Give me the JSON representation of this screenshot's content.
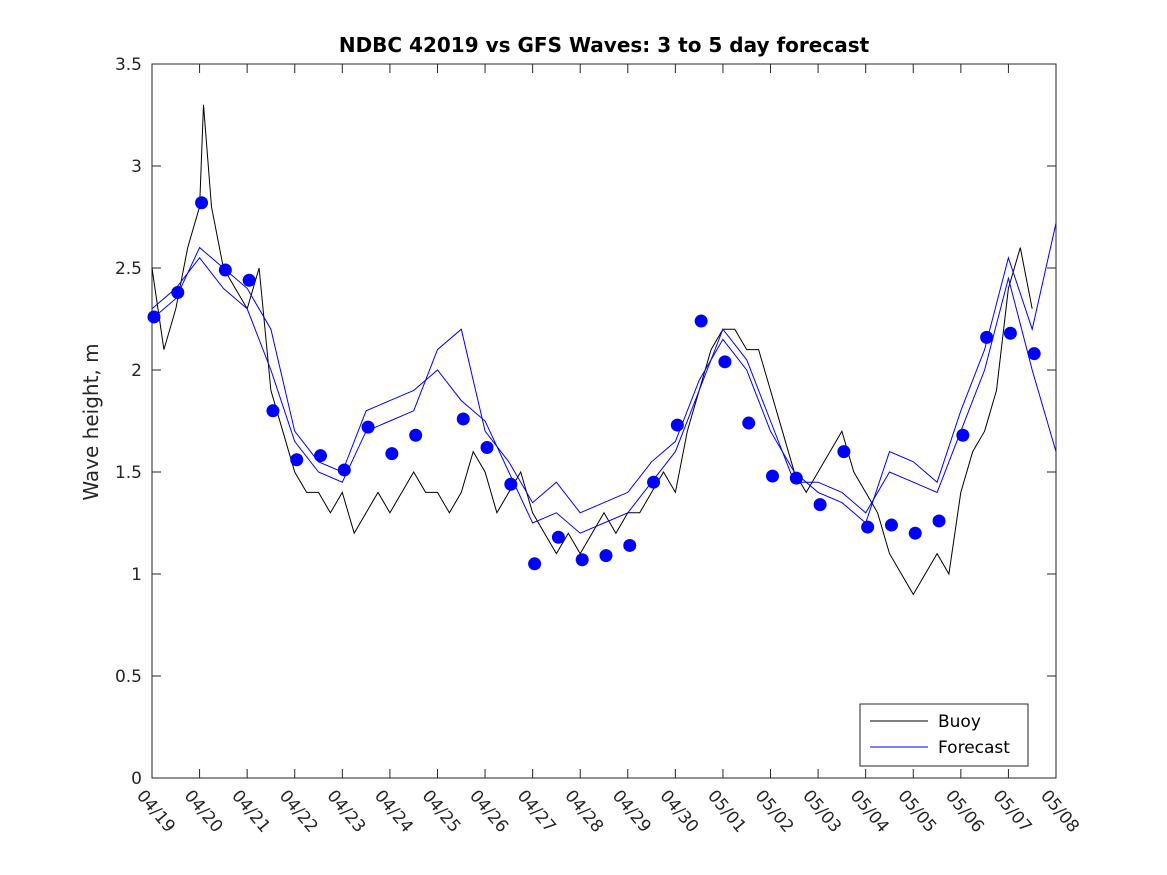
{
  "chart_data": {
    "type": "line",
    "title": "NDBC 42019 vs GFS Waves: 3 to 5 day forecast",
    "xlabel": "",
    "ylabel": "Wave height, m",
    "ylim": [
      0,
      3.5
    ],
    "yticks": [
      "0",
      "0.5",
      "1",
      "1.5",
      "2",
      "2.5",
      "3",
      "3.5"
    ],
    "x_start": "04/19",
    "xticks": [
      "04/19",
      "04/20",
      "04/21",
      "04/22",
      "04/23",
      "04/24",
      "04/25",
      "04/26",
      "04/27",
      "04/28",
      "04/29",
      "04/30",
      "05/01",
      "05/02",
      "05/03",
      "05/04",
      "05/05",
      "05/06",
      "05/07",
      "05/08"
    ],
    "grid": false,
    "legend": {
      "position": "bottom-right",
      "entries": [
        "Buoy",
        "Forecast"
      ]
    },
    "colors": {
      "buoy": "#000000",
      "forecast": "#0000ff"
    },
    "series": [
      {
        "name": "Buoy",
        "style": "line",
        "x": [
          "04/19",
          "04/19 06:00",
          "04/19 12:00",
          "04/19 18:00",
          "04/20",
          "04/20 02:00",
          "04/20 06:00",
          "04/20 12:00",
          "04/20 18:00",
          "04/21",
          "04/21 06:00",
          "04/21 12:00",
          "04/21 18:00",
          "04/22",
          "04/22 06:00",
          "04/22 12:00",
          "04/22 18:00",
          "04/23",
          "04/23 06:00",
          "04/23 12:00",
          "04/23 18:00",
          "04/24",
          "04/24 06:00",
          "04/24 12:00",
          "04/24 18:00",
          "04/25",
          "04/25 06:00",
          "04/25 12:00",
          "04/25 18:00",
          "04/26",
          "04/26 06:00",
          "04/26 12:00",
          "04/26 18:00",
          "04/27",
          "04/27 06:00",
          "04/27 12:00",
          "04/27 18:00",
          "04/28",
          "04/28 06:00",
          "04/28 12:00",
          "04/28 18:00",
          "04/29",
          "04/29 06:00",
          "04/29 12:00",
          "04/29 18:00",
          "04/30",
          "04/30 06:00",
          "04/30 12:00",
          "04/30 18:00",
          "05/01",
          "05/01 06:00",
          "05/01 12:00",
          "05/01 18:00",
          "05/02",
          "05/02 06:00",
          "05/02 12:00",
          "05/02 18:00",
          "05/03",
          "05/03 06:00",
          "05/03 12:00",
          "05/03 18:00",
          "05/04",
          "05/04 06:00",
          "05/04 12:00",
          "05/04 18:00",
          "05/05",
          "05/05 06:00",
          "05/05 12:00",
          "05/05 18:00",
          "05/06",
          "05/06 06:00",
          "05/06 12:00",
          "05/06 18:00",
          "05/07",
          "05/07 06:00",
          "05/07 12:00"
        ],
        "values": [
          2.5,
          2.1,
          2.3,
          2.6,
          2.8,
          3.3,
          2.8,
          2.5,
          2.4,
          2.3,
          2.5,
          1.9,
          1.7,
          1.5,
          1.4,
          1.4,
          1.3,
          1.4,
          1.2,
          1.3,
          1.4,
          1.3,
          1.4,
          1.5,
          1.4,
          1.4,
          1.3,
          1.4,
          1.6,
          1.5,
          1.3,
          1.4,
          1.5,
          1.3,
          1.2,
          1.1,
          1.2,
          1.1,
          1.2,
          1.3,
          1.2,
          1.3,
          1.3,
          1.4,
          1.5,
          1.4,
          1.7,
          1.9,
          2.1,
          2.2,
          2.2,
          2.1,
          2.1,
          1.9,
          1.7,
          1.5,
          1.4,
          1.5,
          1.6,
          1.7,
          1.5,
          1.4,
          1.3,
          1.1,
          1.0,
          0.9,
          1.0,
          1.1,
          1.0,
          1.4,
          1.6,
          1.7,
          1.9,
          2.4,
          2.6,
          2.3
        ]
      },
      {
        "name": "Forecast",
        "style": "line",
        "x": [
          "04/19",
          "04/19 12:00",
          "04/20",
          "04/20 12:00",
          "04/21",
          "04/21 12:00",
          "04/22",
          "04/22 12:00",
          "04/23",
          "04/23 12:00",
          "04/24",
          "04/24 12:00",
          "04/25",
          "04/25 12:00",
          "04/26",
          "04/26 12:00",
          "04/27",
          "04/27 12:00",
          "04/28",
          "04/28 12:00",
          "04/29",
          "04/29 12:00",
          "04/30",
          "04/30 12:00",
          "05/01",
          "05/01 12:00",
          "05/02",
          "05/02 12:00",
          "05/03",
          "05/03 12:00",
          "05/04",
          "05/04 12:00",
          "05/05",
          "05/05 12:00",
          "05/06",
          "05/06 12:00",
          "05/07",
          "05/07 12:00",
          "05/08"
        ],
        "values": [
          2.25,
          2.35,
          2.6,
          2.5,
          2.4,
          2.2,
          1.7,
          1.55,
          1.5,
          1.8,
          1.85,
          1.9,
          2.0,
          1.85,
          1.75,
          1.5,
          1.25,
          1.3,
          1.2,
          1.25,
          1.3,
          1.45,
          1.6,
          1.9,
          2.2,
          2.05,
          1.75,
          1.45,
          1.45,
          1.4,
          1.3,
          1.5,
          1.45,
          1.4,
          1.7,
          2.0,
          2.45,
          2.0,
          1.6
        ]
      },
      {
        "name": "Forecast",
        "style": "line",
        "x": [
          "04/19",
          "04/19 12:00",
          "04/20",
          "04/20 12:00",
          "04/21",
          "04/21 12:00",
          "04/22",
          "04/22 12:00",
          "04/23",
          "04/23 12:00",
          "04/24",
          "04/24 12:00",
          "04/25",
          "04/25 12:00",
          "04/26",
          "04/26 12:00",
          "04/27",
          "04/27 12:00",
          "04/28",
          "04/28 12:00",
          "04/29",
          "04/29 12:00",
          "04/30",
          "04/30 12:00",
          "05/01",
          "05/01 12:00",
          "05/02",
          "05/02 12:00",
          "05/03",
          "05/03 12:00",
          "05/04",
          "05/04 12:00",
          "05/05",
          "05/05 12:00",
          "05/06",
          "05/06 12:00",
          "05/07",
          "05/07 12:00",
          "05/08"
        ],
        "values": [
          2.3,
          2.4,
          2.55,
          2.4,
          2.3,
          2.0,
          1.65,
          1.5,
          1.45,
          1.7,
          1.75,
          1.8,
          2.1,
          2.2,
          1.7,
          1.55,
          1.35,
          1.45,
          1.3,
          1.35,
          1.4,
          1.55,
          1.65,
          1.95,
          2.15,
          2.0,
          1.7,
          1.5,
          1.4,
          1.35,
          1.25,
          1.6,
          1.55,
          1.45,
          1.8,
          2.1,
          2.55,
          2.2,
          2.72
        ]
      },
      {
        "name": "Forecast",
        "style": "markers",
        "x": [
          "04/19 01:00",
          "04/19 13:00",
          "04/20 01:00",
          "04/20 13:00",
          "04/21 01:00",
          "04/21 13:00",
          "04/22 01:00",
          "04/22 13:00",
          "04/23 01:00",
          "04/23 13:00",
          "04/24 01:00",
          "04/24 13:00",
          "04/25 13:00",
          "04/26 01:00",
          "04/26 13:00",
          "04/27 01:00",
          "04/27 13:00",
          "04/28 01:00",
          "04/28 13:00",
          "04/29 01:00",
          "04/29 13:00",
          "04/30 01:00",
          "04/30 13:00",
          "05/01 01:00",
          "05/01 13:00",
          "05/02 01:00",
          "05/02 13:00",
          "05/03 01:00",
          "05/03 13:00",
          "05/04 01:00",
          "05/04 13:00",
          "05/05 01:00",
          "05/05 13:00",
          "05/06 01:00",
          "05/06 13:00",
          "05/07 01:00",
          "05/07 13:00"
        ],
        "values": [
          2.26,
          2.38,
          2.82,
          2.49,
          2.44,
          1.8,
          1.56,
          1.58,
          1.51,
          1.72,
          1.59,
          1.68,
          1.76,
          1.62,
          1.44,
          1.05,
          1.18,
          1.07,
          1.09,
          1.14,
          1.45,
          1.73,
          2.24,
          2.04,
          1.74,
          1.48,
          1.47,
          1.34,
          1.6,
          1.23,
          1.24,
          1.2,
          1.26,
          1.68,
          2.16,
          2.18,
          2.08
        ]
      }
    ]
  }
}
